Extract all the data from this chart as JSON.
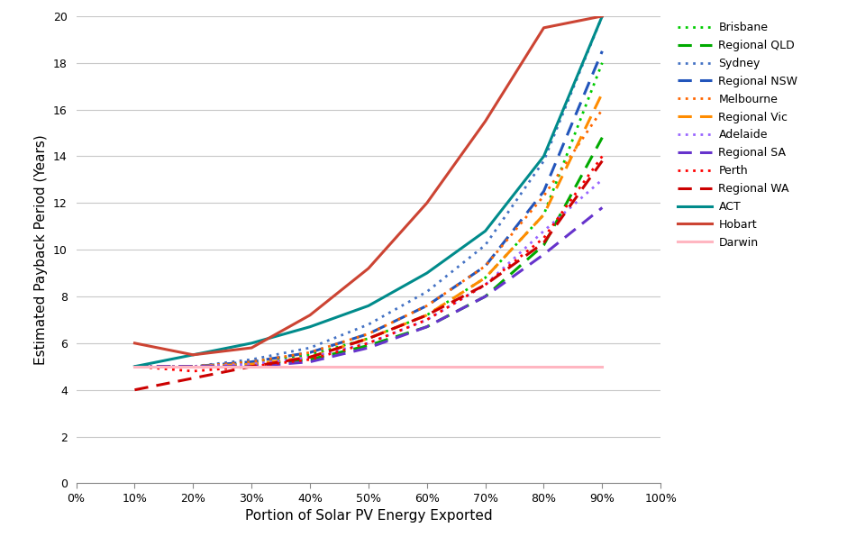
{
  "xlabel": "Portion of Solar PV Energy Exported",
  "ylabel": "Estimated Payback Period (Years)",
  "xlim": [
    0.0,
    1.0
  ],
  "ylim": [
    0,
    20
  ],
  "yticks": [
    0,
    2,
    4,
    6,
    8,
    10,
    12,
    14,
    16,
    18,
    20
  ],
  "xticks": [
    0.0,
    0.1,
    0.2,
    0.3,
    0.4,
    0.5,
    0.6,
    0.7,
    0.8,
    0.9,
    1.0
  ],
  "series": [
    {
      "name": "Brisbane",
      "color": "#00CC00",
      "linestyle": "dotted",
      "linewidth": 2.0,
      "x": [
        0.1,
        0.2,
        0.3,
        0.4,
        0.5,
        0.6,
        0.7,
        0.8,
        0.9
      ],
      "y": [
        5.0,
        5.0,
        5.2,
        5.5,
        6.2,
        7.2,
        8.8,
        11.5,
        18.0
      ]
    },
    {
      "name": "Regional QLD",
      "color": "#00AA00",
      "linestyle": "dashed",
      "linewidth": 2.2,
      "x": [
        0.1,
        0.2,
        0.3,
        0.4,
        0.5,
        0.6,
        0.7,
        0.8,
        0.9
      ],
      "y": [
        5.0,
        5.0,
        5.1,
        5.3,
        5.9,
        6.7,
        8.0,
        10.2,
        14.8
      ]
    },
    {
      "name": "Sydney",
      "color": "#4472C4",
      "linestyle": "dotted",
      "linewidth": 2.0,
      "x": [
        0.1,
        0.2,
        0.3,
        0.4,
        0.5,
        0.6,
        0.7,
        0.8,
        0.9
      ],
      "y": [
        5.0,
        5.0,
        5.3,
        5.8,
        6.8,
        8.2,
        10.2,
        13.8,
        20.0
      ]
    },
    {
      "name": "Regional NSW",
      "color": "#2255BB",
      "linestyle": "dashed",
      "linewidth": 2.2,
      "x": [
        0.1,
        0.2,
        0.3,
        0.4,
        0.5,
        0.6,
        0.7,
        0.8,
        0.9
      ],
      "y": [
        5.0,
        5.0,
        5.2,
        5.6,
        6.4,
        7.6,
        9.3,
        12.5,
        18.5
      ]
    },
    {
      "name": "Melbourne",
      "color": "#FF6600",
      "linestyle": "dotted",
      "linewidth": 2.0,
      "x": [
        0.1,
        0.2,
        0.3,
        0.4,
        0.5,
        0.6,
        0.7,
        0.8,
        0.9
      ],
      "y": [
        5.0,
        5.0,
        5.2,
        5.6,
        6.4,
        7.6,
        9.3,
        12.3,
        16.0
      ]
    },
    {
      "name": "Regional Vic",
      "color": "#FF8C00",
      "linestyle": "dashed",
      "linewidth": 2.2,
      "x": [
        0.1,
        0.2,
        0.3,
        0.4,
        0.5,
        0.6,
        0.7,
        0.8,
        0.9
      ],
      "y": [
        5.0,
        5.0,
        5.1,
        5.4,
        6.2,
        7.2,
        8.8,
        11.5,
        16.7
      ]
    },
    {
      "name": "Adelaide",
      "color": "#9966FF",
      "linestyle": "dotted",
      "linewidth": 2.0,
      "x": [
        0.1,
        0.2,
        0.3,
        0.4,
        0.5,
        0.6,
        0.7,
        0.8,
        0.9
      ],
      "y": [
        5.0,
        5.0,
        5.1,
        5.4,
        6.0,
        7.0,
        8.5,
        10.8,
        13.0
      ]
    },
    {
      "name": "Regional SA",
      "color": "#6633CC",
      "linestyle": "dashed",
      "linewidth": 2.2,
      "x": [
        0.1,
        0.2,
        0.3,
        0.4,
        0.5,
        0.6,
        0.7,
        0.8,
        0.9
      ],
      "y": [
        5.0,
        5.0,
        5.0,
        5.2,
        5.8,
        6.7,
        8.0,
        9.8,
        11.8
      ]
    },
    {
      "name": "Perth",
      "color": "#FF0000",
      "linestyle": "dotted",
      "linewidth": 2.0,
      "x": [
        0.1,
        0.2,
        0.3,
        0.4,
        0.5,
        0.6,
        0.7,
        0.8,
        0.9
      ],
      "y": [
        5.0,
        4.8,
        5.0,
        5.3,
        6.0,
        7.0,
        8.5,
        10.5,
        14.0
      ]
    },
    {
      "name": "Regional WA",
      "color": "#CC0000",
      "linestyle": "dashed",
      "linewidth": 2.2,
      "x": [
        0.1,
        0.2,
        0.3,
        0.4,
        0.5,
        0.6,
        0.7,
        0.8,
        0.9
      ],
      "y": [
        4.0,
        4.5,
        5.0,
        5.4,
        6.2,
        7.2,
        8.5,
        10.3,
        13.8
      ]
    },
    {
      "name": "ACT",
      "color": "#008B8B",
      "linestyle": "solid",
      "linewidth": 2.2,
      "x": [
        0.1,
        0.2,
        0.3,
        0.4,
        0.5,
        0.6,
        0.7,
        0.8,
        0.9
      ],
      "y": [
        5.0,
        5.5,
        6.0,
        6.7,
        7.6,
        9.0,
        10.8,
        14.0,
        20.0
      ]
    },
    {
      "name": "Hobart",
      "color": "#CC4433",
      "linestyle": "solid",
      "linewidth": 2.2,
      "x": [
        0.1,
        0.2,
        0.3,
        0.4,
        0.5,
        0.6,
        0.7,
        0.8,
        0.9
      ],
      "y": [
        6.0,
        5.5,
        5.8,
        7.2,
        9.2,
        12.0,
        15.5,
        19.5,
        20.0
      ]
    },
    {
      "name": "Darwin",
      "color": "#FFB6C1",
      "linestyle": "solid",
      "linewidth": 2.2,
      "x": [
        0.1,
        0.2,
        0.3,
        0.4,
        0.5,
        0.6,
        0.7,
        0.8,
        0.9
      ],
      "y": [
        5.0,
        5.0,
        5.0,
        5.0,
        5.0,
        5.0,
        5.0,
        5.0,
        5.0
      ]
    }
  ],
  "background_color": "#FFFFFF",
  "grid_color": "#C8C8C8",
  "legend_fontsize": 9,
  "axis_label_fontsize": 11,
  "tick_fontsize": 9
}
